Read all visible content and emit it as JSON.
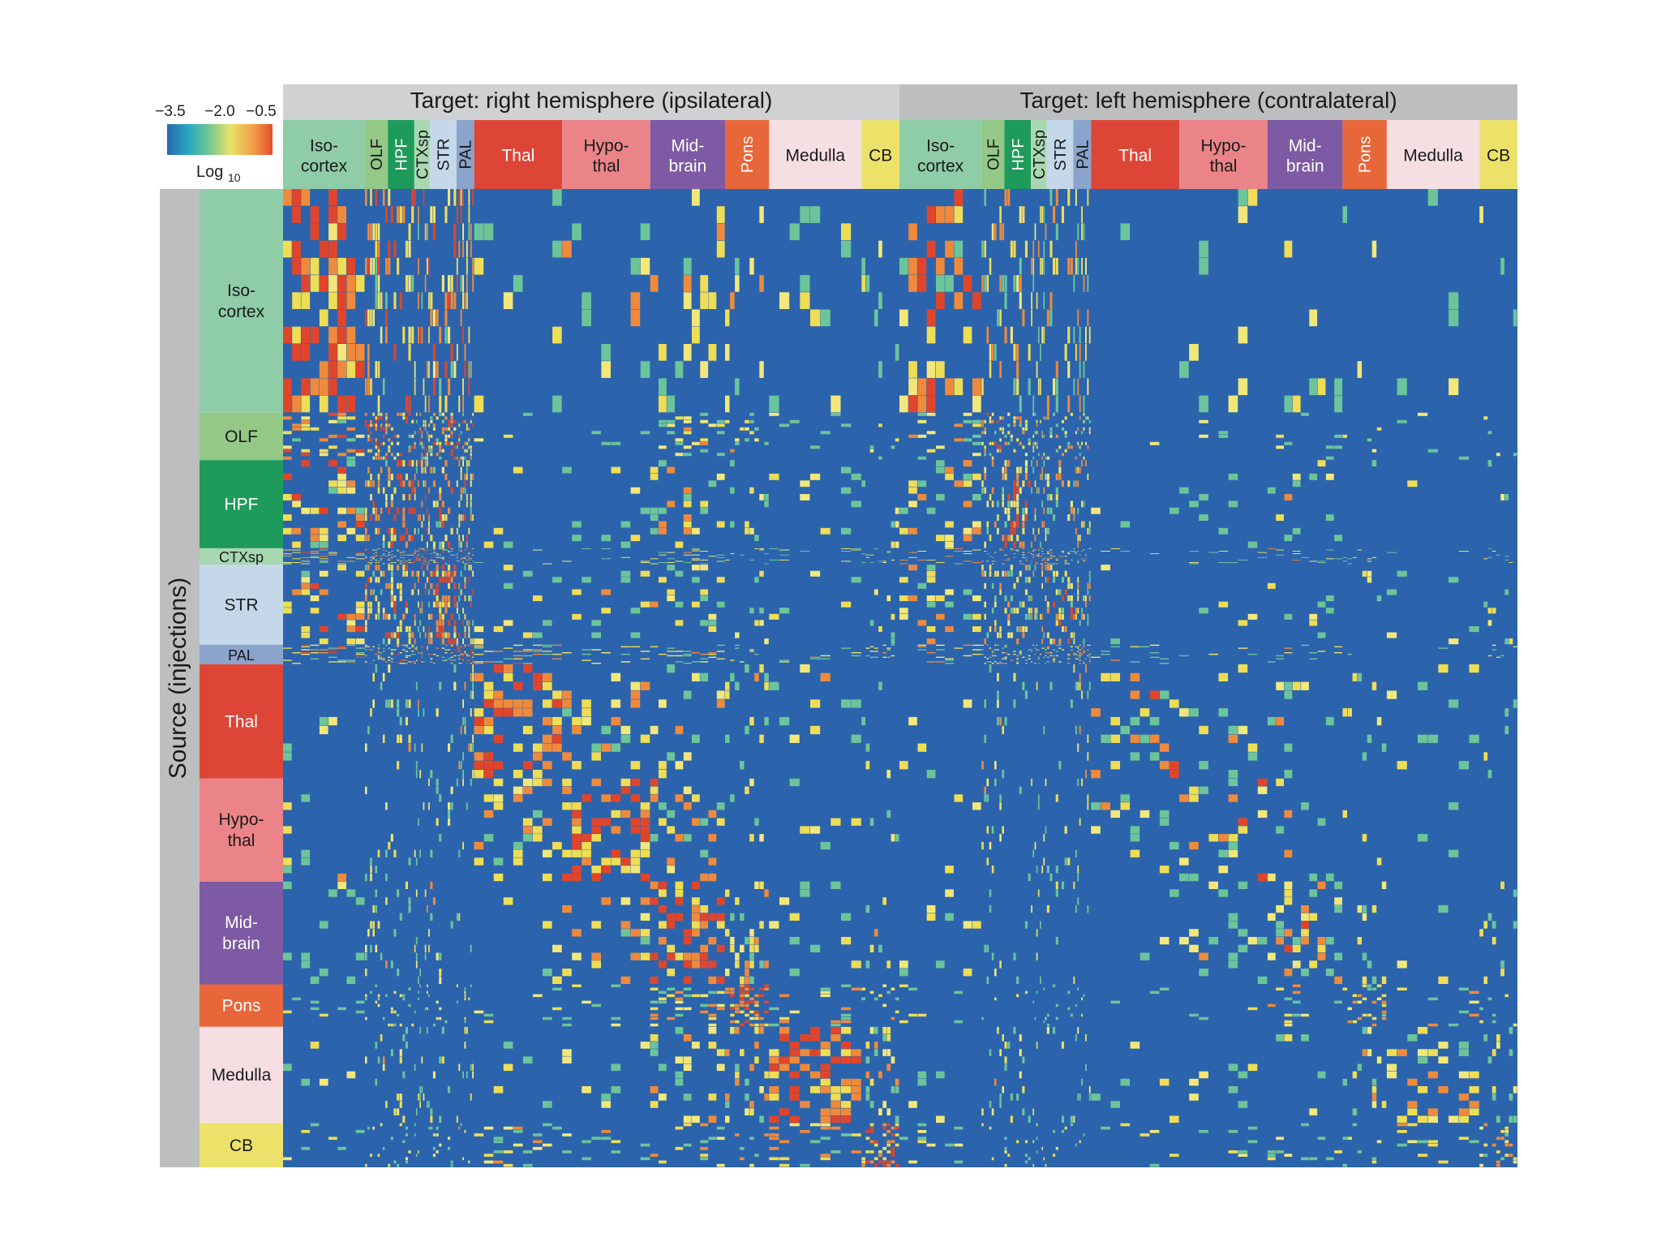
{
  "chart_data": {
    "type": "heatmap",
    "title_left": "Target: right hemisphere (ipsilateral)",
    "title_right": "Target: left hemisphere (contralateral)",
    "ylabel": "Source (injections)",
    "colorbar": {
      "ticks": [
        "−3.5",
        "−2.0",
        "−0.5"
      ],
      "label_main": "Log",
      "label_sub": "10",
      "range": [
        -3.5,
        -0.5
      ],
      "colors": [
        "#2a66b2",
        "#27a8c2",
        "#72c891",
        "#e8e36a",
        "#f2a34a",
        "#e44d2c"
      ]
    },
    "target_regions": [
      {
        "name": "Iso-cortex",
        "lines": [
          "Iso-",
          "cortex"
        ],
        "color": "#8fcca8",
        "weight": 93,
        "rotated": false
      },
      {
        "name": "OLF",
        "lines": [
          "OLF"
        ],
        "color": "#94c887",
        "weight": 26,
        "rotated": true
      },
      {
        "name": "HPF",
        "lines": [
          "HPF"
        ],
        "color": "#1e9a5a",
        "weight": 30,
        "rotated": true
      },
      {
        "name": "CTXsp",
        "lines": [
          "CTXsp"
        ],
        "color": "#a8d8b2",
        "weight": 18,
        "rotated": true
      },
      {
        "name": "STR",
        "lines": [
          "STR"
        ],
        "color": "#c4d8ea",
        "weight": 30,
        "rotated": true
      },
      {
        "name": "PAL",
        "lines": [
          "PAL"
        ],
        "color": "#8aa4cc",
        "weight": 20,
        "rotated": true
      },
      {
        "name": "Thal",
        "lines": [
          "Thal"
        ],
        "color": "#dd4637",
        "weight": 100,
        "rotated": false
      },
      {
        "name": "Hypo-thal",
        "lines": [
          "Hypo-",
          "thal"
        ],
        "color": "#eb8488",
        "weight": 100,
        "rotated": false
      },
      {
        "name": "Mid-brain",
        "lines": [
          "Mid-",
          "brain"
        ],
        "color": "#7d5aa3",
        "weight": 85,
        "rotated": false
      },
      {
        "name": "Pons",
        "lines": [
          "Pons"
        ],
        "color": "#e8673a",
        "weight": 50,
        "rotated": true
      },
      {
        "name": "Medulla",
        "lines": [
          "Medulla"
        ],
        "color": "#f6dfe3",
        "weight": 105,
        "rotated": false
      },
      {
        "name": "CB",
        "lines": [
          "CB"
        ],
        "color": "#ece26a",
        "weight": 43,
        "rotated": false
      }
    ],
    "source_regions": [
      {
        "name": "Iso-cortex",
        "lines": [
          "Iso-",
          "cortex"
        ],
        "color": "#8fcca8",
        "weight": 274
      },
      {
        "name": "OLF",
        "lines": [
          "OLF"
        ],
        "color": "#94c887",
        "weight": 58
      },
      {
        "name": "HPF",
        "lines": [
          "HPF"
        ],
        "color": "#1e9a5a",
        "weight": 108
      },
      {
        "name": "CTXsp",
        "lines": [
          "CTXsp"
        ],
        "color": "#a8d8b2",
        "weight": 20
      },
      {
        "name": "STR",
        "lines": [
          "STR"
        ],
        "color": "#c4d8ea",
        "weight": 98
      },
      {
        "name": "PAL",
        "lines": [
          "PAL"
        ],
        "color": "#8aa4cc",
        "weight": 24
      },
      {
        "name": "Thal",
        "lines": [
          "Thal"
        ],
        "color": "#dd4637",
        "weight": 140
      },
      {
        "name": "Hypo-thal",
        "lines": [
          "Hypo-",
          "thal"
        ],
        "color": "#eb8488",
        "weight": 126
      },
      {
        "name": "Mid-brain",
        "lines": [
          "Mid-",
          "brain"
        ],
        "color": "#7d5aa3",
        "weight": 126
      },
      {
        "name": "Pons",
        "lines": [
          "Pons"
        ],
        "color": "#e8673a",
        "weight": 52
      },
      {
        "name": "Medulla",
        "lines": [
          "Medulla"
        ],
        "color": "#f6dfe3",
        "weight": 118
      },
      {
        "name": "CB",
        "lines": [
          "CB"
        ],
        "color": "#ece26a",
        "weight": 54
      }
    ],
    "hemispheres": [
      "ipsilateral",
      "contralateral"
    ],
    "background_value": -3.5
  }
}
